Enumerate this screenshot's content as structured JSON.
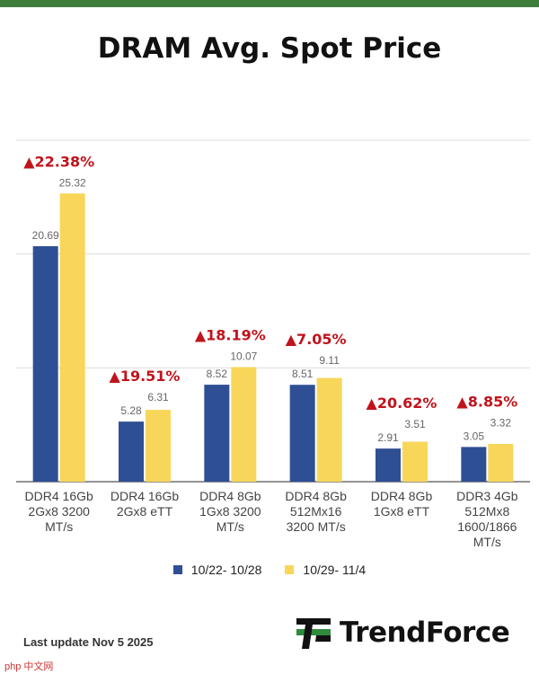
{
  "title": "DRAM Avg. Spot Price",
  "chart_data": {
    "type": "bar",
    "title": "DRAM Avg. Spot Price",
    "categories": [
      [
        "DDR4 16Gb",
        "2Gx8 3200",
        "MT/s"
      ],
      [
        "DDR4 16Gb",
        "2Gx8 eTT"
      ],
      [
        "DDR4 8Gb",
        "1Gx8 3200",
        "MT/s"
      ],
      [
        "DDR4 8Gb",
        "512Mx16",
        "3200 MT/s"
      ],
      [
        "DDR4 8Gb",
        "1Gx8 eTT"
      ],
      [
        "DDR3 4Gb",
        "512Mx8",
        "1600/1866",
        "MT/s"
      ]
    ],
    "series": [
      {
        "name": "10/22- 10/28",
        "color": "#2f4f94",
        "values": [
          20.69,
          5.28,
          8.52,
          8.51,
          2.91,
          3.05
        ]
      },
      {
        "name": "10/29- 11/4",
        "color": "#f7d65a",
        "values": [
          25.32,
          6.31,
          10.07,
          9.11,
          3.51,
          3.32
        ]
      }
    ],
    "change_labels": [
      "▲22.38%",
      "▲19.51%",
      "▲18.19%",
      "▲7.05%",
      "▲20.62%",
      "▲8.85%"
    ],
    "change_color": "#c0141c",
    "ylim": [
      0,
      30
    ],
    "grid": true,
    "legend": "bottom",
    "xlabel": "",
    "ylabel": ""
  },
  "footer": {
    "last_update": "Last update Nov 5  2025",
    "brand": "TrendForce",
    "watermark": "php 中文网"
  }
}
